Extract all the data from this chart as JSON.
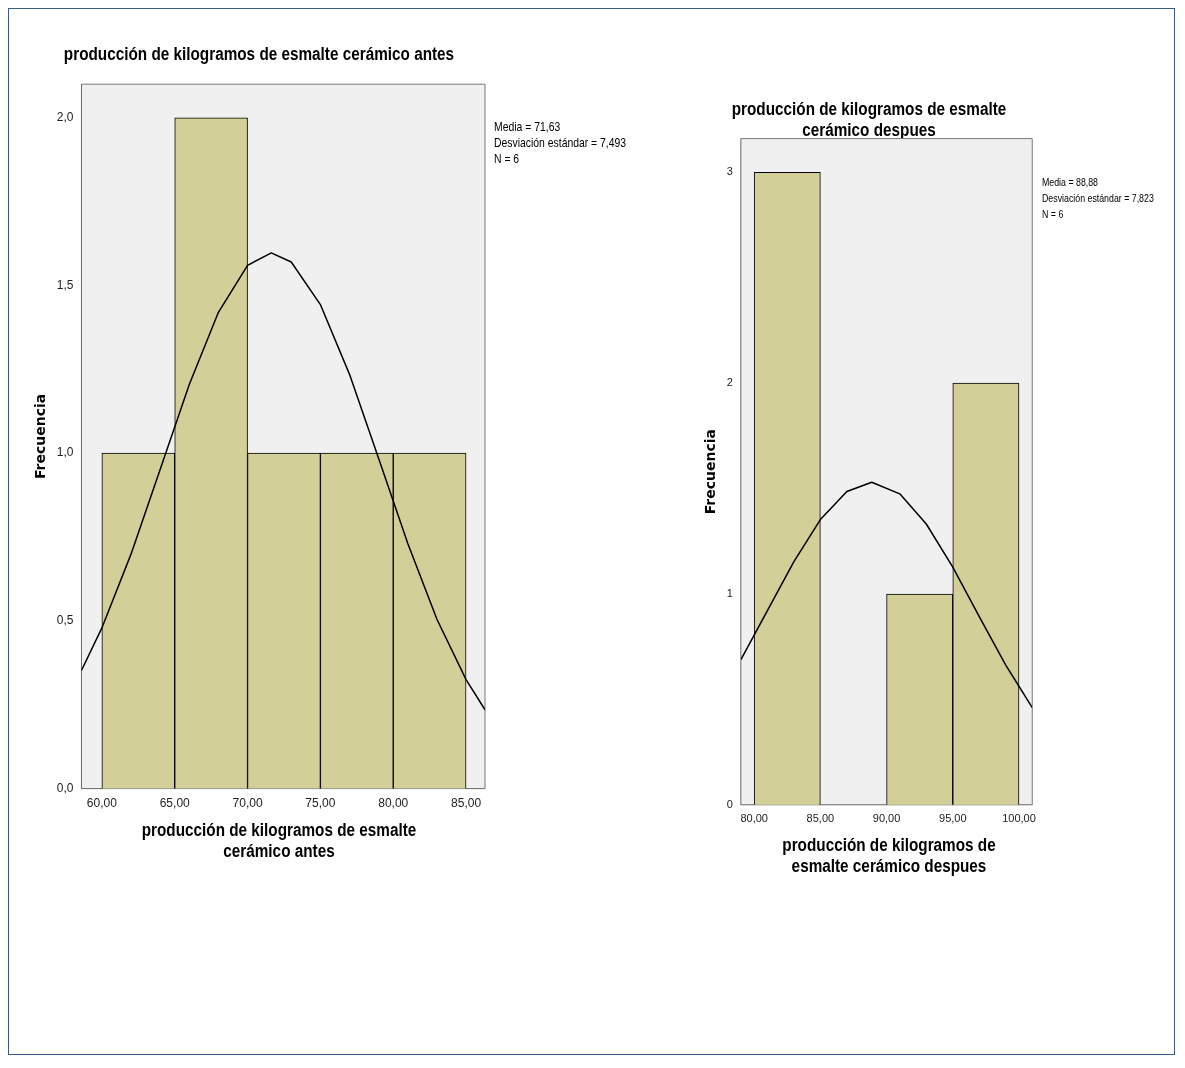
{
  "chart_data": [
    {
      "type": "histogram",
      "title": "producción de kilogramos de esmalte cerámico antes",
      "xlabel": "producción de kilogramos de esmalte cerámico antes",
      "ylabel": "Frecuencia",
      "annotations": [
        "Media = 71,63",
        "Desviación estándar = 7,493",
        "N = 6"
      ],
      "bins": [
        60,
        65,
        70,
        75,
        80,
        85
      ],
      "values": [
        1,
        2,
        1,
        1,
        1
      ],
      "color": "#d3cf98",
      "series": [
        {
          "type": "line",
          "color": "#000000",
          "x": [
            58.6,
            60,
            62,
            64,
            66,
            68,
            70,
            71.63,
            73,
            75,
            77,
            79,
            81,
            83,
            85,
            86.3
          ],
          "values": [
            0.352,
            0.479,
            0.699,
            0.951,
            1.205,
            1.42,
            1.56,
            1.597,
            1.57,
            1.443,
            1.235,
            0.984,
            0.731,
            0.505,
            0.325,
            0.235
          ]
        }
      ],
      "xlim": [
        58.6,
        86.3
      ],
      "ylim": [
        0,
        2.1
      ],
      "xticks": [
        {
          "value": 60,
          "label": "60,00"
        },
        {
          "value": 65,
          "label": "65,00"
        },
        {
          "value": 70,
          "label": "70,00"
        },
        {
          "value": 75,
          "label": "75,00"
        },
        {
          "value": 80,
          "label": "80,00"
        },
        {
          "value": 85,
          "label": "85,00"
        }
      ],
      "yticks": [
        {
          "value": 0,
          "label": "0,0"
        },
        {
          "value": 0.5,
          "label": "0,5"
        },
        {
          "value": 1,
          "label": "1,0"
        },
        {
          "value": 1.5,
          "label": "1,5"
        },
        {
          "value": 2,
          "label": "2,0"
        }
      ],
      "grid": false
    },
    {
      "type": "histogram",
      "title": "producción de kilogramos de esmalte cerámico despues",
      "xlabel": "producción de kilogramos de esmalte cerámico despues",
      "ylabel": "Frecuencia",
      "annotations": [
        "Media = 88,88",
        "Desviación estándar = 7,823",
        "N = 6"
      ],
      "bins": [
        80,
        85,
        90,
        95,
        100
      ],
      "values": [
        3,
        0,
        1,
        2
      ],
      "color": "#d3cf98",
      "series": [
        {
          "type": "line",
          "color": "#000000",
          "x": [
            79,
            81,
            83,
            85,
            87,
            88.88,
            91,
            93,
            95,
            97,
            99,
            101
          ],
          "values": [
            0.689,
            0.921,
            1.153,
            1.353,
            1.486,
            1.53,
            1.475,
            1.332,
            1.127,
            0.893,
            0.663,
            0.461
          ]
        }
      ],
      "xlim": [
        79,
        101
      ],
      "ylim": [
        0,
        3.16
      ],
      "xticks": [
        {
          "value": 80,
          "label": "80,00"
        },
        {
          "value": 85,
          "label": "85,00"
        },
        {
          "value": 90,
          "label": "90,00"
        },
        {
          "value": 95,
          "label": "95,00"
        },
        {
          "value": 100,
          "label": "100,00"
        }
      ],
      "yticks": [
        0,
        1,
        2,
        3
      ],
      "grid": false
    }
  ]
}
